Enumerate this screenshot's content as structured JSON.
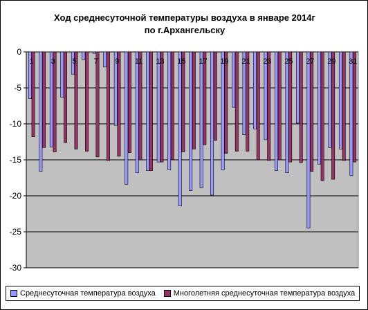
{
  "chart_data": {
    "type": "bar",
    "title": [
      "Ход среднесуточной температуры воздуха в январе 2014г",
      "по г.Архангельску"
    ],
    "categories": [
      1,
      2,
      3,
      4,
      5,
      6,
      7,
      8,
      9,
      10,
      11,
      12,
      13,
      14,
      15,
      16,
      17,
      18,
      19,
      20,
      21,
      22,
      23,
      24,
      25,
      26,
      27,
      28,
      29,
      30,
      31
    ],
    "x_tick_labels": [
      "1",
      "3",
      "5",
      "7",
      "9",
      "11",
      "13",
      "15",
      "17",
      "19",
      "21",
      "23",
      "25",
      "27",
      "29",
      "31"
    ],
    "x_tick_categories": [
      1,
      3,
      5,
      7,
      9,
      11,
      13,
      15,
      17,
      19,
      21,
      23,
      25,
      27,
      29,
      31
    ],
    "y_ticks": [
      0,
      -5,
      -10,
      -15,
      -20,
      -25,
      -30
    ],
    "ylim": [
      -30,
      0
    ],
    "grid": true,
    "legend_position": "bottom",
    "plot_background": "#c0c0c0",
    "series": [
      {
        "name": "Среднесуточная температура воздуха",
        "color": "#9999ff",
        "values": [
          -6.5,
          -16.6,
          -13.2,
          -6.3,
          -3.1,
          -1.1,
          -0.2,
          -2.1,
          -10.2,
          -18.4,
          -16.8,
          -16.5,
          -15.3,
          -16.4,
          -21.4,
          -19.3,
          -18.9,
          -19.9,
          -16.4,
          -7.7,
          -11.5,
          -10.7,
          -12.2,
          -16.5,
          -16.8,
          -9.9,
          -24.5,
          -15.6,
          -13.3,
          -13.5,
          -17.2
        ]
      },
      {
        "name": "Многолетняя среднесуточная  температура воздуха",
        "color": "#993366",
        "values": [
          -11.8,
          -13.3,
          -13.9,
          -12.6,
          -13.5,
          -13.8,
          -14.6,
          -15.1,
          -14.5,
          -14.0,
          -15.0,
          -16.5,
          -15.3,
          -15.0,
          -13.9,
          -13.5,
          -12.9,
          -12.3,
          -14.1,
          -13.8,
          -13.8,
          -15.0,
          -15.1,
          -15.0,
          -15.3,
          -15.4,
          -16.6,
          -17.9,
          -17.7,
          -15.1,
          -15.3
        ]
      }
    ]
  }
}
